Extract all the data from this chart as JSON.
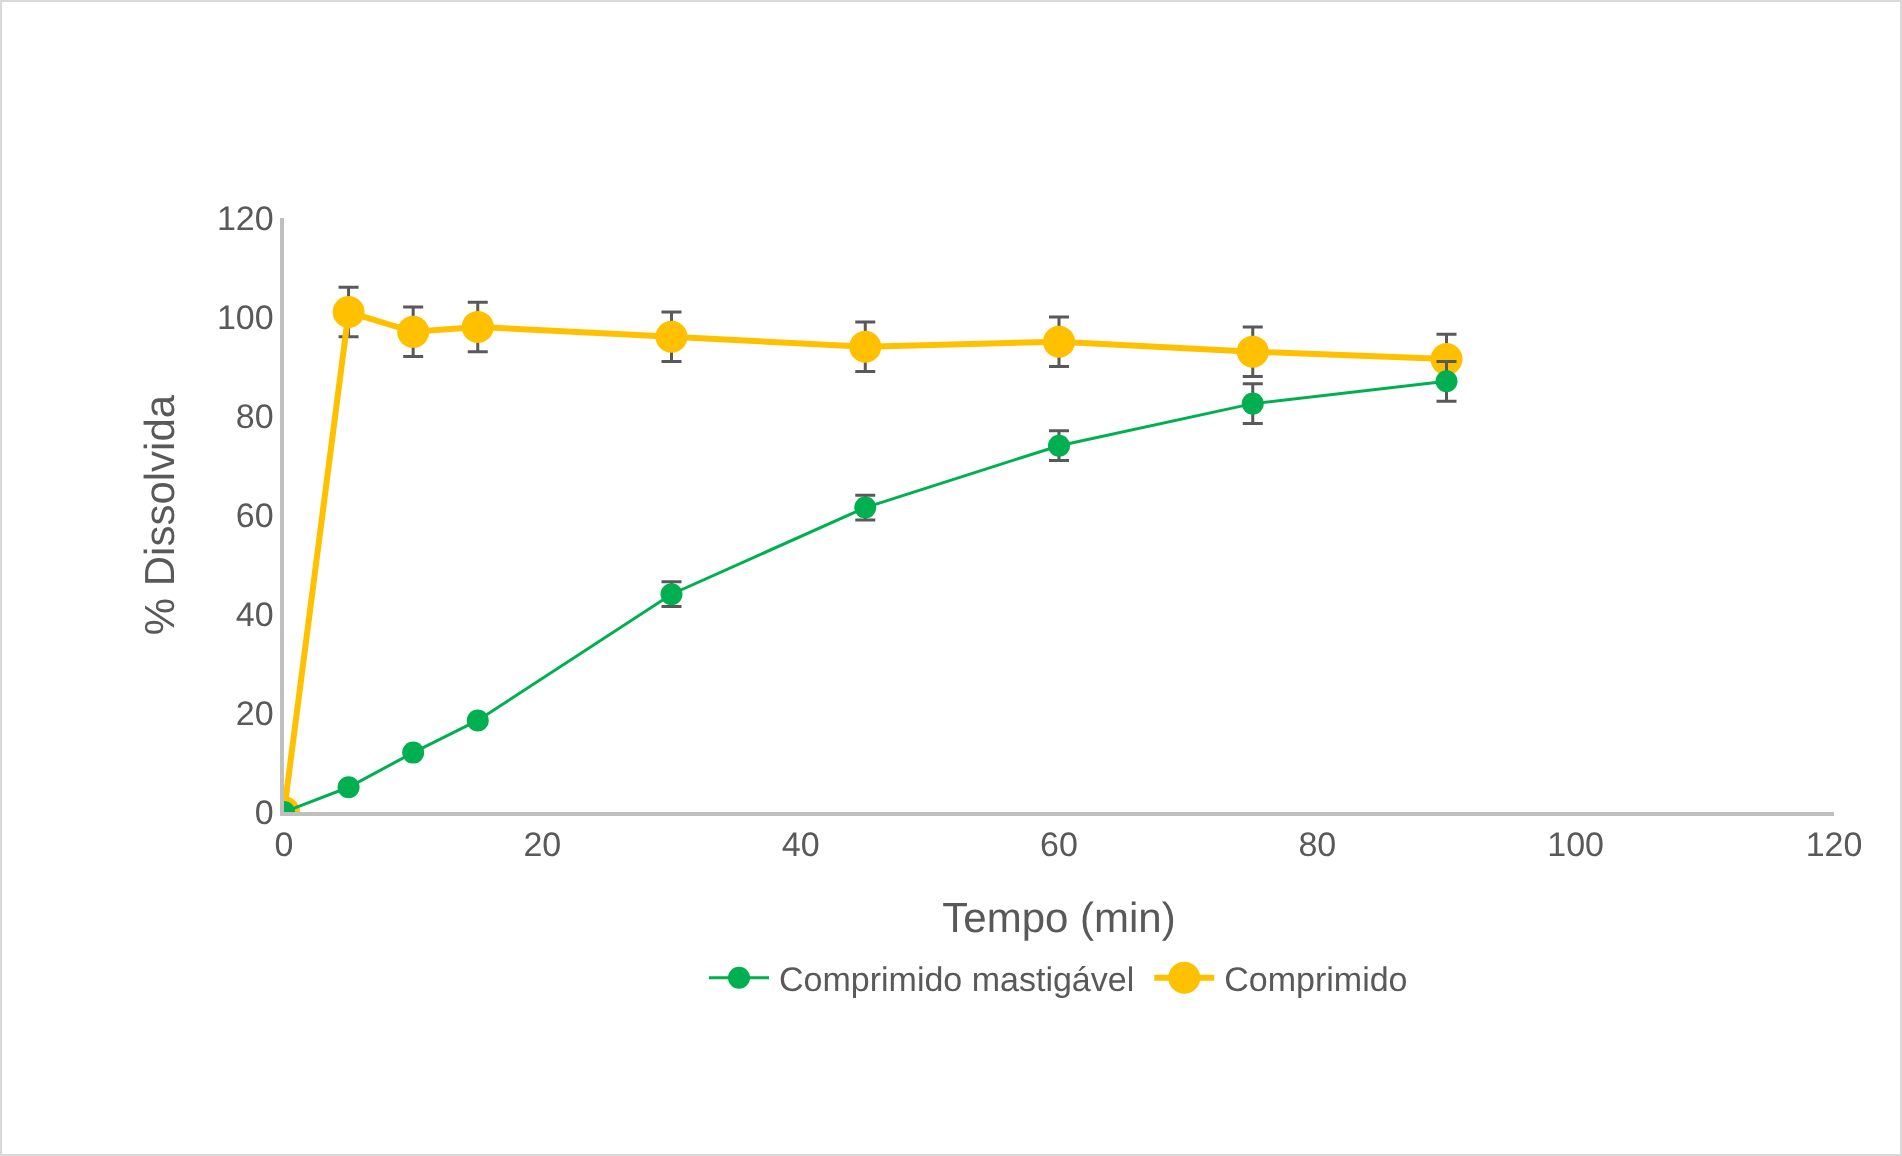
{
  "chart_data": {
    "type": "line",
    "xlabel": "Tempo (min)",
    "ylabel": "% Dissolvida",
    "x": [
      0,
      5,
      10,
      15,
      30,
      45,
      60,
      75,
      90
    ],
    "series": [
      {
        "name": "Comprimido mastigável",
        "color": "#00b050",
        "values": [
          0,
          5,
          12,
          18.5,
          44,
          61.5,
          74,
          82.5,
          87
        ],
        "errors": [
          null,
          null,
          null,
          null,
          2.5,
          2.5,
          3,
          4,
          4
        ]
      },
      {
        "name": "Comprimido",
        "color": "#ffc000",
        "values": [
          0,
          101,
          97,
          98,
          96,
          94,
          95,
          93,
          91.5
        ],
        "errors": [
          null,
          5,
          5,
          5,
          5,
          5,
          5,
          5,
          5
        ]
      }
    ],
    "xlim": [
      0,
      120
    ],
    "xticks": [
      0,
      20,
      40,
      60,
      80,
      100,
      120
    ],
    "ylim": [
      0,
      120
    ],
    "yticks": [
      0,
      20,
      40,
      60,
      80,
      100,
      120
    ],
    "grid": false,
    "legend": "bottom",
    "marker": "circle",
    "line_style": "solid"
  }
}
